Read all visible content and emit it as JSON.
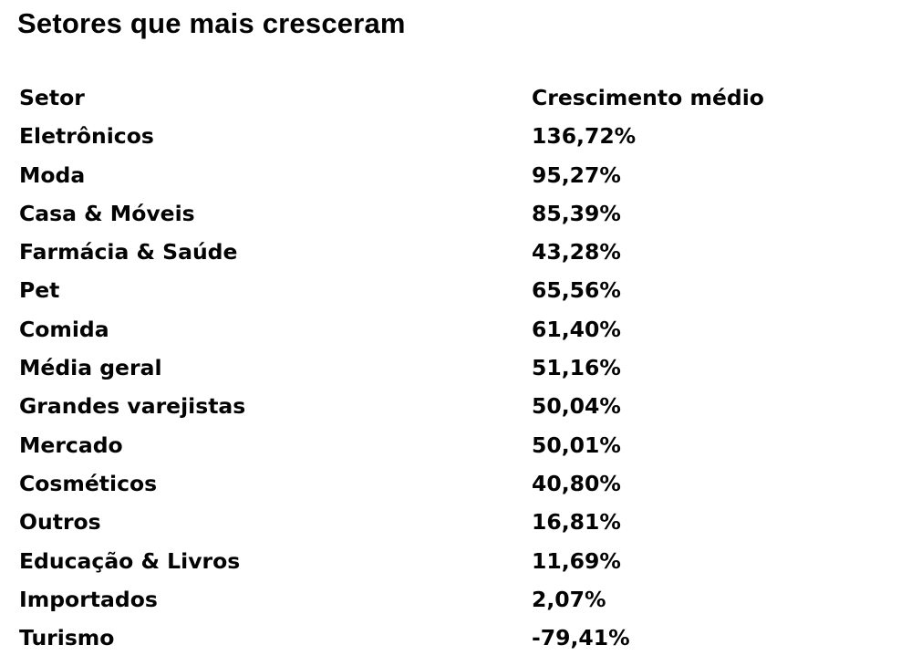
{
  "page": {
    "title": "Setores que mais cresceram",
    "background_color": "#ffffff",
    "text_color": "#030303"
  },
  "table": {
    "columns": [
      {
        "key": "setor",
        "label": "Setor"
      },
      {
        "key": "crescimento",
        "label": "Crescimento médio"
      }
    ],
    "rows": [
      {
        "setor": "Eletrônicos",
        "crescimento": "136,72%"
      },
      {
        "setor": "Moda",
        "crescimento": "95,27%"
      },
      {
        "setor": "Casa & Móveis",
        "crescimento": "85,39%"
      },
      {
        "setor": "Farmácia & Saúde",
        "crescimento": "43,28%"
      },
      {
        "setor": "Pet",
        "crescimento": "65,56%"
      },
      {
        "setor": "Comida",
        "crescimento": "61,40%"
      },
      {
        "setor": "Média geral",
        "crescimento": "51,16%"
      },
      {
        "setor": "Grandes varejistas",
        "crescimento": "50,04%"
      },
      {
        "setor": "Mercado",
        "crescimento": "50,01%"
      },
      {
        "setor": "Cosméticos",
        "crescimento": "40,80%"
      },
      {
        "setor": "Outros",
        "crescimento": "16,81%"
      },
      {
        "setor": "Educação & Livros",
        "crescimento": "11,69%"
      },
      {
        "setor": "Importados",
        "crescimento": "2,07%"
      },
      {
        "setor": "Turismo",
        "crescimento": "-79,41%"
      }
    ]
  },
  "chart_data": {
    "type": "table",
    "title": "Setores que mais cresceram",
    "columns": [
      "Setor",
      "Crescimento médio"
    ],
    "categories": [
      "Eletrônicos",
      "Moda",
      "Casa & Móveis",
      "Farmácia & Saúde",
      "Pet",
      "Comida",
      "Média geral",
      "Grandes varejistas",
      "Mercado",
      "Cosméticos",
      "Outros",
      "Educação & Livros",
      "Importados",
      "Turismo"
    ],
    "values": [
      136.72,
      95.27,
      85.39,
      43.28,
      65.56,
      61.4,
      51.16,
      50.04,
      50.01,
      40.8,
      16.81,
      11.69,
      2.07,
      -79.41
    ],
    "value_unit": "%",
    "value_format": "pt-BR decimal comma",
    "layout_hints": {
      "grid": false,
      "header_row": true,
      "text_align": "left",
      "font_weight": "bold"
    }
  }
}
